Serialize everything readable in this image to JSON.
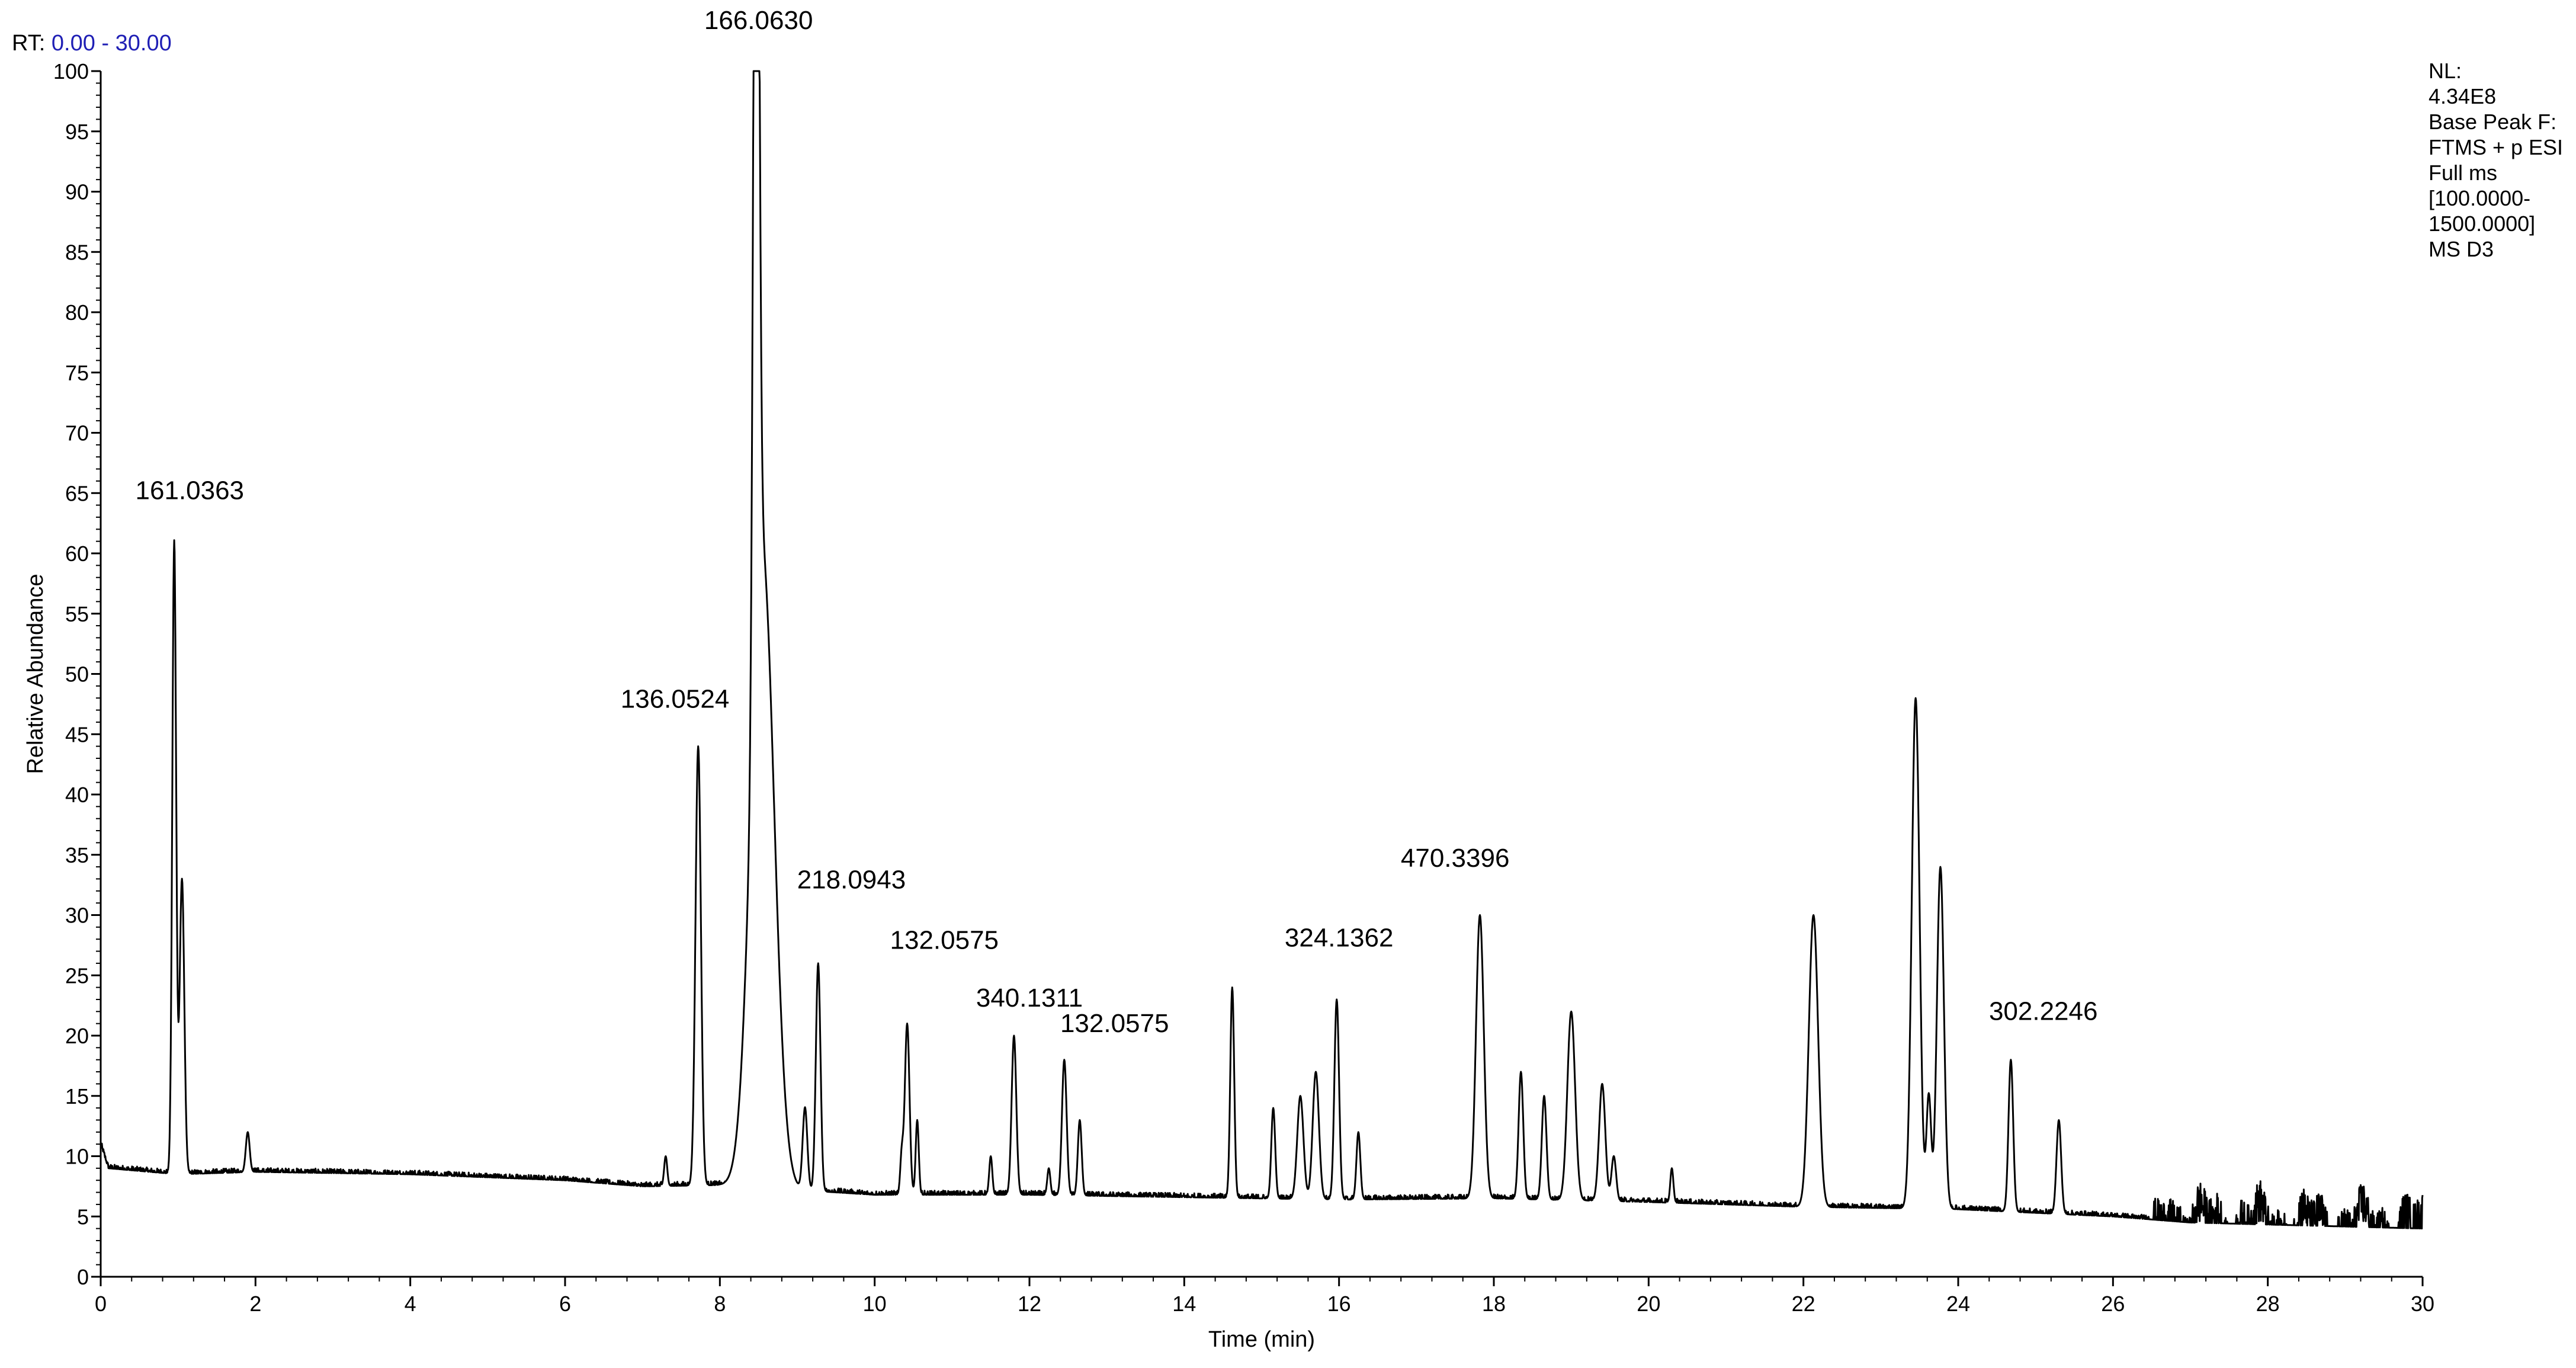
{
  "rt_label": {
    "prefix": "RT:",
    "range": "0.00 - 30.00"
  },
  "info_block": [
    "NL:",
    "4.34E8",
    "Base Peak F:",
    "FTMS + p ESI",
    "Full ms",
    "[100.0000-",
    "1500.0000]",
    "MS D3"
  ],
  "colors": {
    "trace": "#000000",
    "rt_range": "#1f1fb5",
    "background": "#ffffff"
  },
  "chart_data": {
    "type": "line",
    "title": "",
    "xlabel": "Time (min)",
    "ylabel": "Relative Abundance",
    "xlim": [
      0,
      30
    ],
    "ylim": [
      0,
      100
    ],
    "x_ticks": [
      0,
      2,
      4,
      6,
      8,
      10,
      12,
      14,
      16,
      18,
      20,
      22,
      24,
      26,
      28,
      30
    ],
    "y_ticks": [
      0,
      5,
      10,
      15,
      20,
      25,
      30,
      35,
      40,
      45,
      50,
      55,
      60,
      65,
      70,
      75,
      80,
      85,
      90,
      95,
      100
    ],
    "grid": false,
    "legend": "none",
    "baseline": [
      [
        0,
        11
      ],
      [
        0.1,
        9
      ],
      [
        1,
        8.5
      ],
      [
        2,
        8.7
      ],
      [
        4,
        8.5
      ],
      [
        6,
        8
      ],
      [
        7,
        7.5
      ],
      [
        8,
        7.6
      ],
      [
        9,
        7.2
      ],
      [
        10,
        6.8
      ],
      [
        12,
        6.8
      ],
      [
        14,
        6.6
      ],
      [
        16,
        6.4
      ],
      [
        18,
        6.5
      ],
      [
        20,
        6.2
      ],
      [
        22,
        5.8
      ],
      [
        24,
        5.6
      ],
      [
        26,
        5
      ],
      [
        27,
        4.5
      ],
      [
        30,
        4
      ]
    ],
    "peaks": [
      {
        "rt": 0.95,
        "height": 61,
        "width": 0.025
      },
      {
        "rt": 1.05,
        "height": 33,
        "width": 0.03
      },
      {
        "rt": 1.9,
        "height": 12,
        "width": 0.025
      },
      {
        "rt": 7.3,
        "height": 10,
        "width": 0.02
      },
      {
        "rt": 7.72,
        "height": 44,
        "width": 0.035
      },
      {
        "rt": 8.47,
        "height": 100,
        "width": 0.035
      },
      {
        "rt": 8.55,
        "height": 60,
        "width": 0.15
      },
      {
        "rt": 9.1,
        "height": 14,
        "width": 0.03
      },
      {
        "rt": 9.27,
        "height": 26,
        "width": 0.03
      },
      {
        "rt": 10.35,
        "height": 10,
        "width": 0.02
      },
      {
        "rt": 10.42,
        "height": 21,
        "width": 0.03
      },
      {
        "rt": 10.55,
        "height": 13,
        "width": 0.02
      },
      {
        "rt": 11.5,
        "height": 10,
        "width": 0.02
      },
      {
        "rt": 11.8,
        "height": 20,
        "width": 0.03
      },
      {
        "rt": 12.25,
        "height": 9,
        "width": 0.02
      },
      {
        "rt": 12.45,
        "height": 18,
        "width": 0.03
      },
      {
        "rt": 12.65,
        "height": 13,
        "width": 0.025
      },
      {
        "rt": 14.62,
        "height": 24,
        "width": 0.025
      },
      {
        "rt": 15.15,
        "height": 14,
        "width": 0.025
      },
      {
        "rt": 15.5,
        "height": 15,
        "width": 0.04
      },
      {
        "rt": 15.7,
        "height": 17,
        "width": 0.04
      },
      {
        "rt": 15.97,
        "height": 23,
        "width": 0.03
      },
      {
        "rt": 16.25,
        "height": 12,
        "width": 0.025
      },
      {
        "rt": 17.82,
        "height": 30,
        "width": 0.05
      },
      {
        "rt": 18.35,
        "height": 17,
        "width": 0.03
      },
      {
        "rt": 18.65,
        "height": 15,
        "width": 0.03
      },
      {
        "rt": 19.0,
        "height": 22,
        "width": 0.05
      },
      {
        "rt": 19.4,
        "height": 16,
        "width": 0.04
      },
      {
        "rt": 19.55,
        "height": 10,
        "width": 0.03
      },
      {
        "rt": 20.3,
        "height": 9,
        "width": 0.02
      },
      {
        "rt": 22.13,
        "height": 30,
        "width": 0.06
      },
      {
        "rt": 23.45,
        "height": 48,
        "width": 0.05
      },
      {
        "rt": 23.62,
        "height": 15,
        "width": 0.03
      },
      {
        "rt": 23.77,
        "height": 34,
        "width": 0.045
      },
      {
        "rt": 24.68,
        "height": 18,
        "width": 0.03
      },
      {
        "rt": 25.3,
        "height": 13,
        "width": 0.03
      }
    ],
    "annotations": [
      {
        "text": "161.0363",
        "x": 1.15,
        "y": 64.5
      },
      {
        "text": "166.0630",
        "x": 8.5,
        "y": 103.5
      },
      {
        "text": "136.0524",
        "x": 7.42,
        "y": 47.2
      },
      {
        "text": "218.0943",
        "x": 9.7,
        "y": 32.2
      },
      {
        "text": "132.0575",
        "x": 10.9,
        "y": 27.2
      },
      {
        "text": "340.1311",
        "x": 12.0,
        "y": 22.4
      },
      {
        "text": "132.0575",
        "x": 13.1,
        "y": 20.3
      },
      {
        "text": "324.1362",
        "x": 16.0,
        "y": 27.4
      },
      {
        "text": "470.3396",
        "x": 17.5,
        "y": 34.0
      },
      {
        "text": "302.2246",
        "x": 25.1,
        "y": 21.3
      }
    ]
  }
}
